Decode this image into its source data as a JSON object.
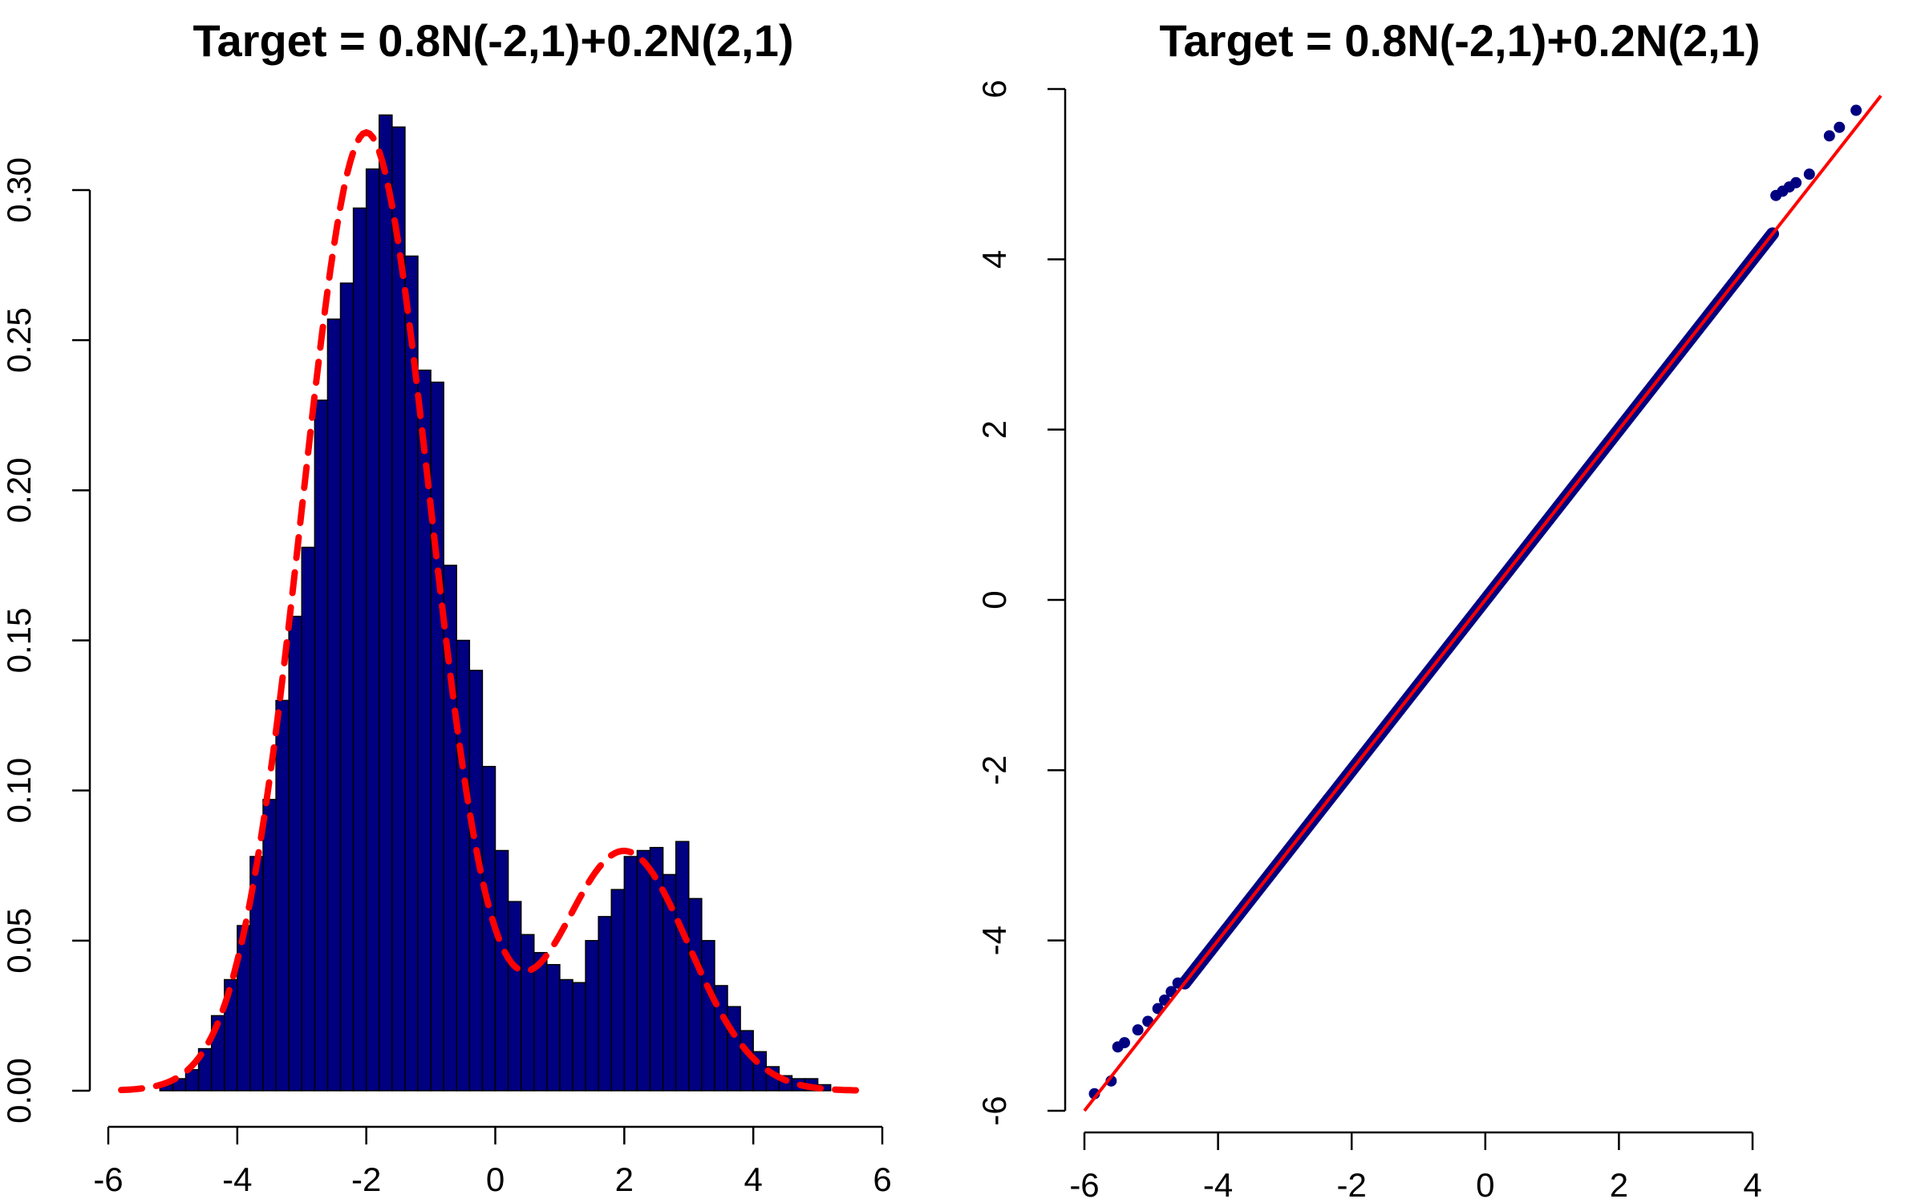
{
  "chart_data": [
    {
      "type": "bar",
      "subtype": "histogram",
      "title": "Target = 0.8N(-2,1)+0.2N(2,1)",
      "xlabel": "",
      "ylabel": "",
      "xlim": [
        -6,
        6
      ],
      "ylim": [
        0,
        0.3
      ],
      "xticks": [
        -6,
        -4,
        -2,
        0,
        2,
        4,
        6
      ],
      "xtick_labels": [
        "-6",
        "-4",
        "-2",
        "0",
        "2",
        "4",
        "6"
      ],
      "yticks": [
        0,
        0.05,
        0.1,
        0.15,
        0.2,
        0.25,
        0.3
      ],
      "ytick_labels": [
        "0.00",
        "0.05",
        "0.10",
        "0.15",
        "0.20",
        "0.25",
        "0.30"
      ],
      "bin_width": 0.2,
      "bin_start": -5.2,
      "values": [
        0.002,
        0.004,
        0.007,
        0.014,
        0.025,
        0.037,
        0.055,
        0.078,
        0.097,
        0.13,
        0.158,
        0.181,
        0.23,
        0.257,
        0.269,
        0.294,
        0.307,
        0.325,
        0.321,
        0.278,
        0.24,
        0.236,
        0.175,
        0.15,
        0.14,
        0.108,
        0.08,
        0.063,
        0.052,
        0.046,
        0.042,
        0.037,
        0.036,
        0.05,
        0.058,
        0.067,
        0.078,
        0.08,
        0.081,
        0.072,
        0.083,
        0.064,
        0.05,
        0.035,
        0.028,
        0.02,
        0.013,
        0.008,
        0.005,
        0.004,
        0.004,
        0.002
      ],
      "bar_color": "#000080",
      "density_curve": {
        "formula": "0.8N(-2,1)+0.2N(2,1)",
        "color": "#ff0000",
        "style": "dashed"
      },
      "grid": false,
      "legend": "none"
    },
    {
      "type": "scatter",
      "subtype": "qq-plot",
      "title": "Target = 0.8N(-2,1)+0.2N(2,1)",
      "xlabel": "",
      "ylabel": "",
      "xlim": [
        -6,
        6
      ],
      "ylim": [
        -6,
        6
      ],
      "xticks": [
        -6,
        -4,
        -2,
        0,
        2,
        4
      ],
      "xtick_labels": [
        "-6",
        "-4",
        "-2",
        "0",
        "2",
        "4"
      ],
      "yticks": [
        -6,
        -4,
        -2,
        0,
        2,
        4,
        6
      ],
      "ytick_labels": [
        "-6",
        "-4",
        "-2",
        "0",
        "2",
        "4",
        "6"
      ],
      "points": [
        [
          -5.85,
          -5.8
        ],
        [
          -5.6,
          -5.65
        ],
        [
          -5.5,
          -5.25
        ],
        [
          -5.4,
          -5.2
        ],
        [
          -5.2,
          -5.05
        ],
        [
          -5.05,
          -4.95
        ],
        [
          -4.9,
          -4.8
        ],
        [
          -4.8,
          -4.7
        ],
        [
          -4.7,
          -4.6
        ],
        [
          -4.6,
          -4.5
        ],
        [
          4.35,
          4.75
        ],
        [
          4.45,
          4.8
        ],
        [
          4.55,
          4.85
        ],
        [
          4.65,
          4.9
        ],
        [
          4.85,
          5.0
        ],
        [
          5.15,
          5.45
        ],
        [
          5.3,
          5.55
        ],
        [
          5.55,
          5.75
        ]
      ],
      "reference_line": {
        "slope": 1,
        "intercept": 0,
        "color": "#ff0000"
      },
      "point_color": "#000080",
      "grid": false,
      "legend": "none"
    }
  ]
}
